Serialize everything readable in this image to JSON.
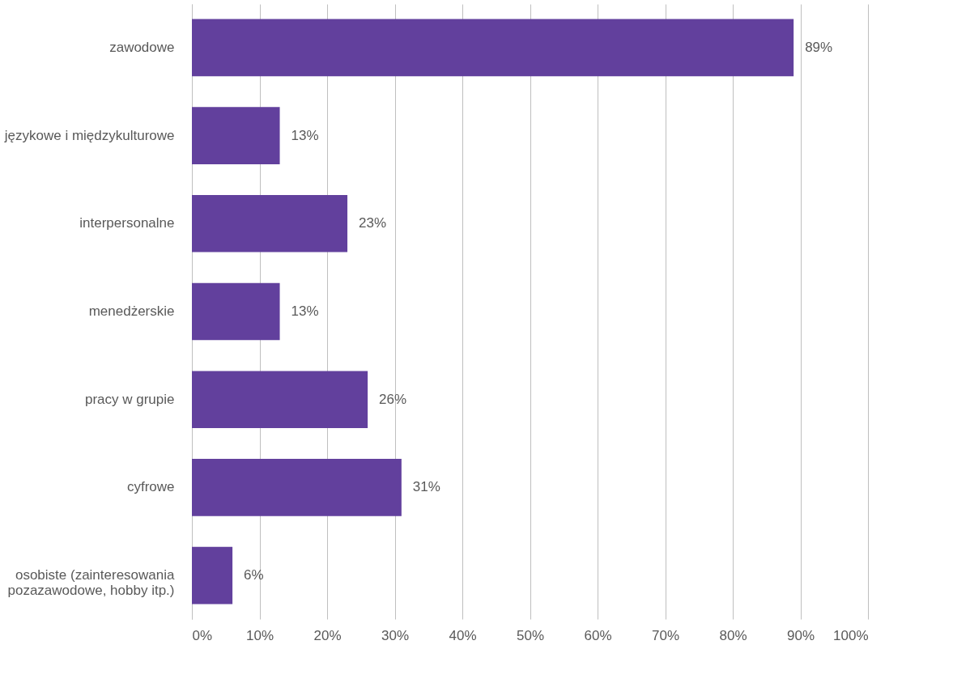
{
  "chart_data": {
    "type": "bar",
    "orientation": "horizontal",
    "categories": [
      "zawodowe",
      "językowe i międzykulturowe",
      "interpersonalne",
      "menedżerskie",
      "pracy w grupie",
      "cyfrowe",
      "osobiste (zainteresowania\npozazawodowe, hobby itp.)"
    ],
    "values": [
      89,
      13,
      23,
      13,
      26,
      31,
      6
    ],
    "value_labels": [
      "89%",
      "13%",
      "23%",
      "13%",
      "26%",
      "31%",
      "6%"
    ],
    "color": "#62409d",
    "xlim": [
      0,
      100
    ],
    "xticks": [
      {
        "value": 0,
        "label": "0%"
      },
      {
        "value": 10,
        "label": "10%"
      },
      {
        "value": 20,
        "label": "20%"
      },
      {
        "value": 30,
        "label": "30%"
      },
      {
        "value": 40,
        "label": "40%"
      },
      {
        "value": 50,
        "label": "50%"
      },
      {
        "value": 60,
        "label": "60%"
      },
      {
        "value": 70,
        "label": "70%"
      },
      {
        "value": 80,
        "label": "80%"
      },
      {
        "value": 90,
        "label": "90%"
      },
      {
        "value": 100,
        "label": "100%"
      }
    ],
    "grid": "x"
  }
}
